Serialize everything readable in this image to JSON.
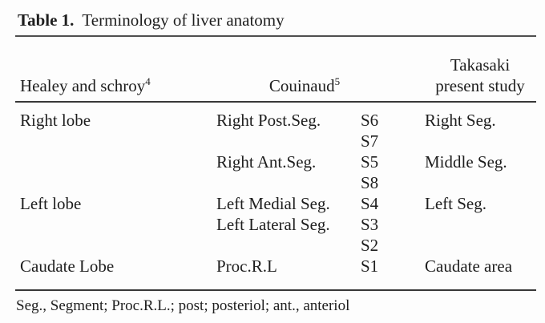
{
  "title": {
    "label": "Table 1.",
    "text": "Terminology of liver anatomy"
  },
  "table": {
    "header": {
      "healey_text": "Healey and schroy",
      "healey_sup": "4",
      "couinaud_text": "Couinaud",
      "couinaud_sup": "5",
      "takasaki_line1": "Takasaki",
      "takasaki_line2": "present study"
    },
    "rows": [
      {
        "healey": "Right lobe",
        "couinaud": "Right Post.Seg.",
        "segment": "S6",
        "takasaki": "Right Seg."
      },
      {
        "healey": "",
        "couinaud": "",
        "segment": "S7",
        "takasaki": ""
      },
      {
        "healey": "",
        "couinaud": "Right Ant.Seg.",
        "segment": "S5",
        "takasaki": "Middle Seg."
      },
      {
        "healey": "",
        "couinaud": "",
        "segment": "S8",
        "takasaki": ""
      },
      {
        "healey": "Left lobe",
        "couinaud": "Left Medial Seg.",
        "segment": "S4",
        "takasaki": "Left Seg."
      },
      {
        "healey": "",
        "couinaud": "Left Lateral Seg.",
        "segment": "S3",
        "takasaki": ""
      },
      {
        "healey": "",
        "couinaud": "",
        "segment": "S2",
        "takasaki": ""
      },
      {
        "healey": "Caudate Lobe",
        "couinaud": "Proc.R.L",
        "segment": "S1",
        "takasaki": "Caudate area"
      }
    ]
  },
  "footnote": "Seg., Segment; Proc.R.L.; post; posteriol; ant., anteriol",
  "colors": {
    "text": "#1e1e1e",
    "background": "#fdfdfd",
    "rule_dark": "#383838",
    "rule_gray": "#4f4f4f"
  }
}
